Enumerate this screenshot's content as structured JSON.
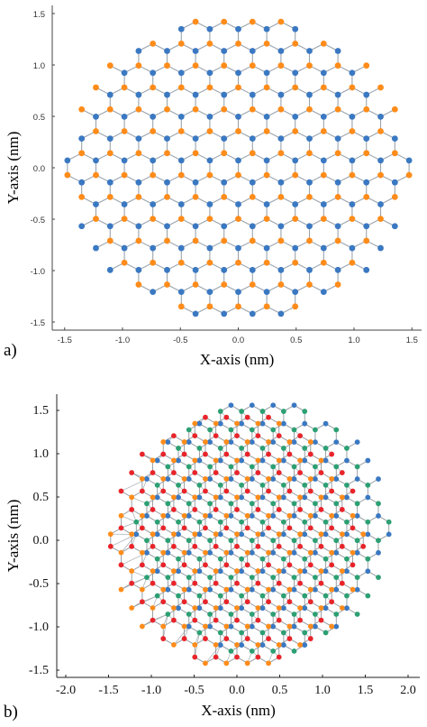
{
  "chart_data": [
    {
      "panel_label": "a)",
      "type": "scatter",
      "title": "",
      "xlabel": "X-axis (nm)",
      "ylabel": "Y-axis (nm)",
      "xlim": [
        -1.55,
        1.55
      ],
      "ylim": [
        -1.55,
        1.55
      ],
      "xticks": [
        -1.5,
        -1.0,
        -0.5,
        0.0,
        0.5,
        1.0,
        1.5
      ],
      "xtick_labels": [
        "-1.5",
        "-1.0",
        "-0.5",
        "0.0",
        "0.5",
        "1.0",
        "1.5"
      ],
      "yticks": [
        -1.5,
        -1.0,
        -0.5,
        0.0,
        0.5,
        1.0,
        1.5
      ],
      "ytick_labels": [
        "-1.5",
        "-1.0",
        "-0.5",
        "0.0",
        "0.5",
        "1.0",
        "1.5"
      ],
      "grid": false,
      "lattice": {
        "structure": "honeycomb",
        "bond_length_nm": 0.142,
        "layers": 1,
        "clip_radius_nm": 1.5
      },
      "series_colors": [
        "#ff8c1a",
        "#3a78c2"
      ],
      "bond_color": "#9aa4ad"
    },
    {
      "panel_label": "b)",
      "type": "scatter",
      "title": "",
      "xlabel": "X-axis (nm)",
      "ylabel": "Y-axis (nm)",
      "xlim": [
        -2.05,
        2.05
      ],
      "ylim": [
        -1.6,
        1.6
      ],
      "xticks": [
        -2.0,
        -1.5,
        -1.0,
        -0.5,
        0.0,
        0.5,
        1.0,
        1.5,
        2.0
      ],
      "xtick_labels": [
        "-2.0",
        "-1.5",
        "-1.0",
        "-0.5",
        "0.0",
        "0.5",
        "1.0",
        "1.5",
        "2.0"
      ],
      "yticks": [
        -1.5,
        -1.0,
        -0.5,
        0.0,
        0.5,
        1.0,
        1.5
      ],
      "ytick_labels": [
        "-1.5",
        "-1.0",
        "-0.5",
        "0.0",
        "0.5",
        "1.0",
        "1.5"
      ],
      "grid": false,
      "lattice": {
        "structure": "honeycomb",
        "bond_length_nm": 0.142,
        "layers": 2,
        "clip_radius_nm": 1.5,
        "layer_shift_nm": [
          0.3,
          0.14
        ]
      },
      "series_colors": [
        "#e8242a",
        "#ff8c1a",
        "#3a78c2",
        "#2ca073"
      ],
      "bond_color": "#8f969c"
    }
  ]
}
